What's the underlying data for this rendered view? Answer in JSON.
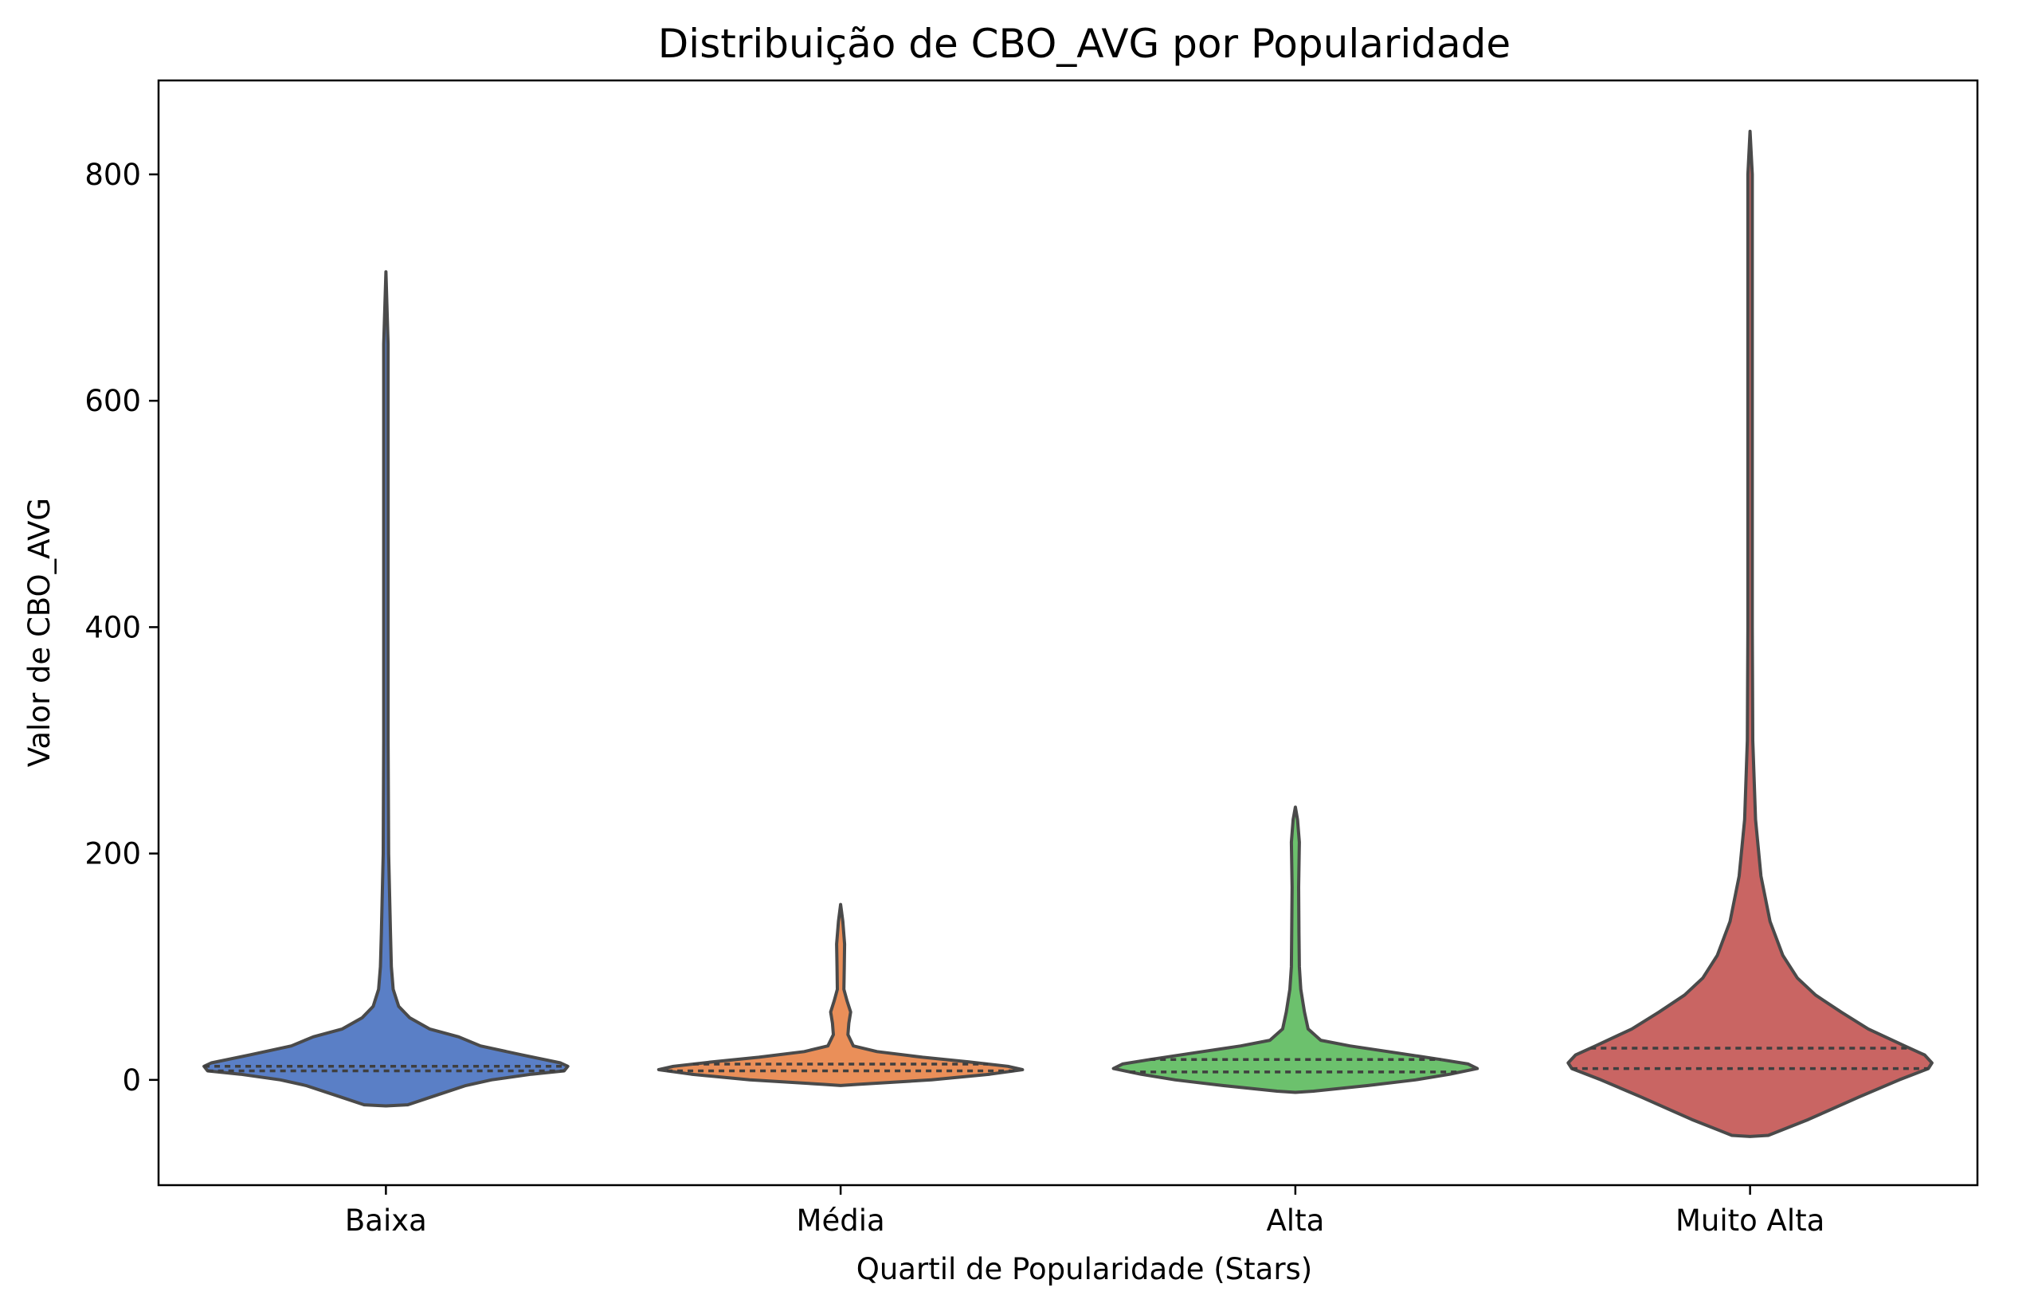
{
  "chart_data": {
    "type": "violin",
    "title": "Distribuição de CBO_AVG por Popularidade",
    "xlabel": "Quartil de Popularidade (Stars)",
    "ylabel": "Valor de CBO_AVG",
    "ylim": [
      -93,
      883
    ],
    "yticks": [
      0,
      200,
      400,
      600,
      800
    ],
    "grid": false,
    "categories": [
      "Baixa",
      "Média",
      "Alta",
      "Muito Alta"
    ],
    "series": [
      {
        "category": "Baixa",
        "color": "#5a7fc6",
        "quartiles": [
          8,
          12
        ],
        "profile": [
          [
            -23,
            0.0
          ],
          [
            -22,
            0.12
          ],
          [
            -15,
            0.25
          ],
          [
            -5,
            0.44
          ],
          [
            0,
            0.58
          ],
          [
            5,
            0.8
          ],
          [
            8,
            0.98
          ],
          [
            12,
            1.0
          ],
          [
            15,
            0.96
          ],
          [
            22,
            0.75
          ],
          [
            30,
            0.52
          ],
          [
            38,
            0.4
          ],
          [
            45,
            0.24
          ],
          [
            55,
            0.13
          ],
          [
            65,
            0.07
          ],
          [
            80,
            0.04
          ],
          [
            100,
            0.03
          ],
          [
            130,
            0.025
          ],
          [
            200,
            0.015
          ],
          [
            300,
            0.012
          ],
          [
            500,
            0.012
          ],
          [
            650,
            0.012
          ],
          [
            714,
            0.0
          ]
        ]
      },
      {
        "category": "Média",
        "color": "#ea8f59",
        "quartiles": [
          8,
          14
        ],
        "profile": [
          [
            -5,
            0.0
          ],
          [
            -4,
            0.09
          ],
          [
            0,
            0.5
          ],
          [
            5,
            0.82
          ],
          [
            9,
            1.0
          ],
          [
            12,
            0.92
          ],
          [
            16,
            0.7
          ],
          [
            20,
            0.45
          ],
          [
            25,
            0.2
          ],
          [
            30,
            0.07
          ],
          [
            40,
            0.04
          ],
          [
            50,
            0.045
          ],
          [
            60,
            0.055
          ],
          [
            70,
            0.035
          ],
          [
            80,
            0.018
          ],
          [
            100,
            0.02
          ],
          [
            120,
            0.022
          ],
          [
            140,
            0.012
          ],
          [
            155,
            0.0
          ]
        ]
      },
      {
        "category": "Alta",
        "color": "#6cc16d",
        "quartiles": [
          7,
          18
        ],
        "profile": [
          [
            -11,
            0.0
          ],
          [
            -10,
            0.1
          ],
          [
            -5,
            0.4
          ],
          [
            0,
            0.66
          ],
          [
            5,
            0.85
          ],
          [
            10,
            1.0
          ],
          [
            14,
            0.95
          ],
          [
            18,
            0.8
          ],
          [
            24,
            0.55
          ],
          [
            30,
            0.3
          ],
          [
            35,
            0.14
          ],
          [
            45,
            0.07
          ],
          [
            60,
            0.05
          ],
          [
            80,
            0.03
          ],
          [
            100,
            0.022
          ],
          [
            130,
            0.02
          ],
          [
            170,
            0.018
          ],
          [
            210,
            0.022
          ],
          [
            230,
            0.012
          ],
          [
            241,
            0.0
          ]
        ]
      },
      {
        "category": "Muito Alta",
        "color": "#c96563",
        "quartiles": [
          10,
          28
        ],
        "profile": [
          [
            -50,
            0.0
          ],
          [
            -49,
            0.1
          ],
          [
            -35,
            0.32
          ],
          [
            -15,
            0.6
          ],
          [
            0,
            0.82
          ],
          [
            10,
            0.98
          ],
          [
            15,
            1.0
          ],
          [
            22,
            0.96
          ],
          [
            30,
            0.85
          ],
          [
            45,
            0.65
          ],
          [
            60,
            0.5
          ],
          [
            75,
            0.36
          ],
          [
            90,
            0.26
          ],
          [
            110,
            0.18
          ],
          [
            140,
            0.11
          ],
          [
            180,
            0.06
          ],
          [
            230,
            0.03
          ],
          [
            300,
            0.015
          ],
          [
            400,
            0.012
          ],
          [
            600,
            0.012
          ],
          [
            800,
            0.012
          ],
          [
            838,
            0.0
          ]
        ]
      }
    ]
  }
}
